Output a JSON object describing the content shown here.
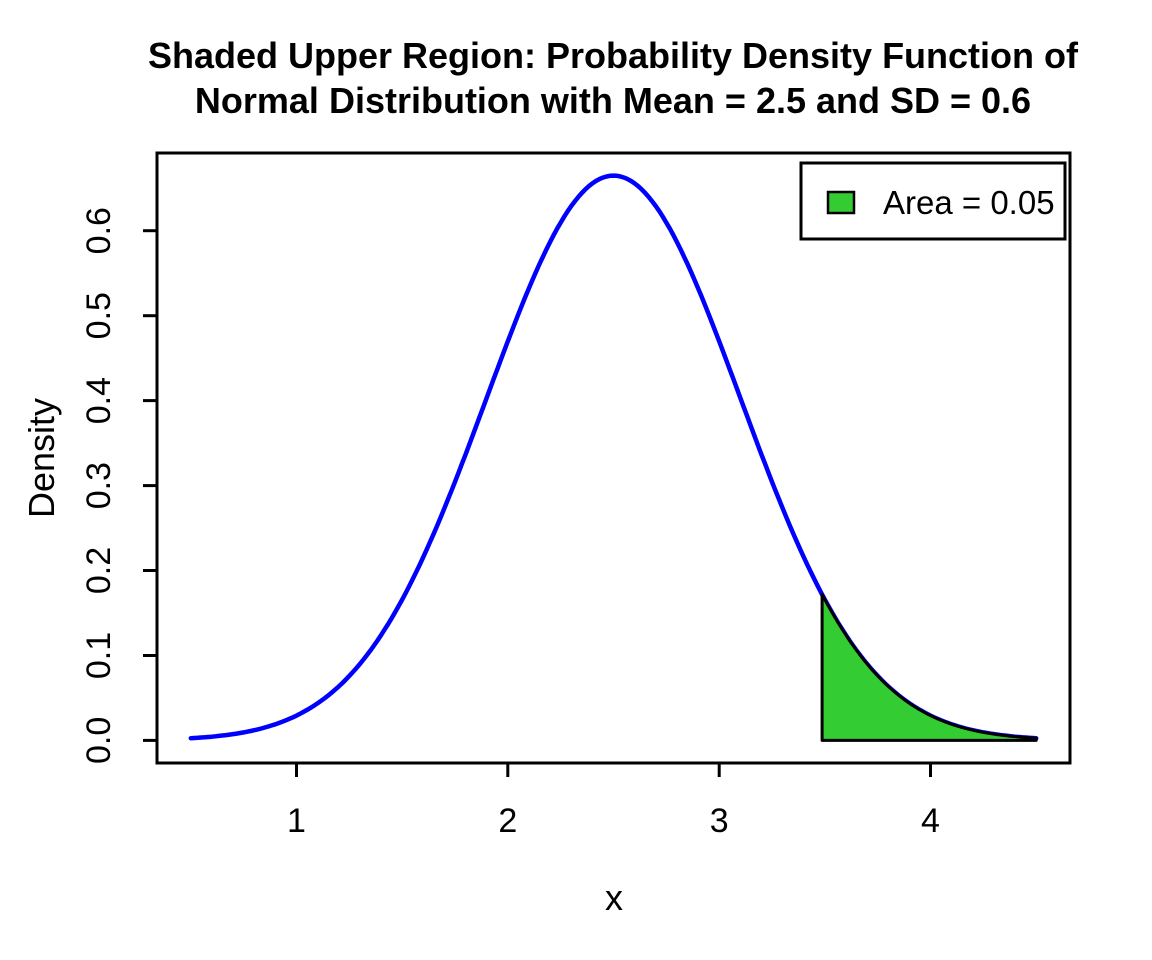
{
  "chart_data": {
    "type": "area",
    "title_line1": "Shaded Upper Region: Probability Density Function of",
    "title_line2": "Normal Distribution with Mean = 2.5 and SD = 0.6",
    "xlabel": "x",
    "ylabel": "Density",
    "distribution": {
      "name": "normal",
      "mean": 2.5,
      "sd": 0.6,
      "peak_density": 0.6649
    },
    "curve_x_range": [
      0.5,
      4.5
    ],
    "xlim": [
      0.34,
      4.66
    ],
    "ylim": [
      -0.0266,
      0.6915
    ],
    "x_ticks": {
      "values": [
        1,
        2,
        3,
        4
      ],
      "labels": [
        "1",
        "2",
        "3",
        "4"
      ]
    },
    "y_ticks": {
      "values": [
        0.0,
        0.1,
        0.2,
        0.3,
        0.4,
        0.5,
        0.6
      ],
      "labels": [
        "0.0",
        "0.1",
        "0.2",
        "0.3",
        "0.4",
        "0.5",
        "0.6"
      ]
    },
    "shaded_region": {
      "side": "upper",
      "from": 3.4869,
      "to": 4.5,
      "area": 0.05,
      "density_at_cutoff": 0.172
    },
    "legend": {
      "label": "Area = 0.05",
      "position": "topright"
    },
    "grid": false,
    "colors": {
      "curve": "#0000FF",
      "shade_fill": "#33CC33",
      "shade_border": "#000000",
      "axis": "#000000",
      "background": "#FFFFFF"
    }
  }
}
